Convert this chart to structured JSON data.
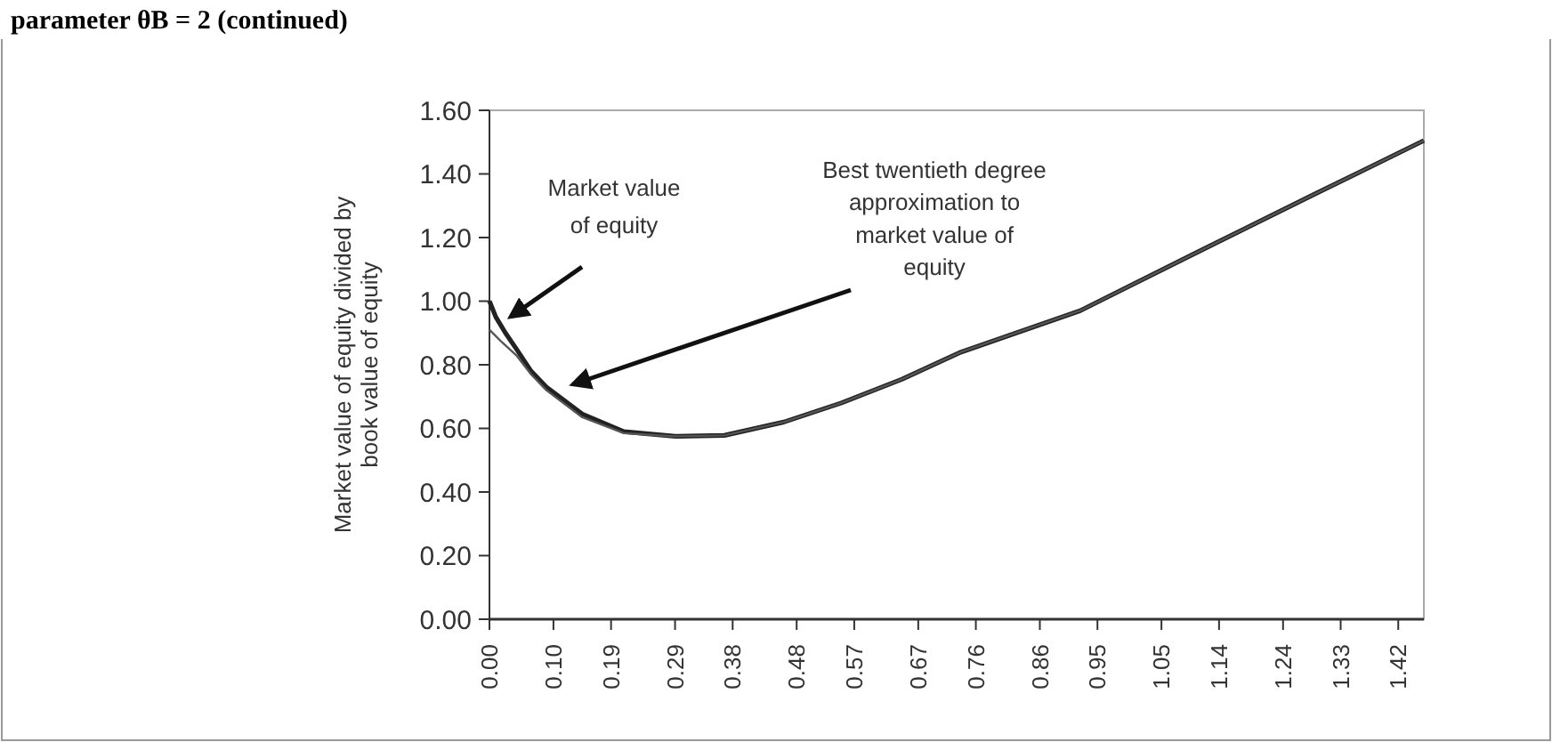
{
  "chart_data": {
    "type": "line",
    "title": "parameter θB = 2 (continued)",
    "ylabel": "Market value of equity divided by book value of equity",
    "annotations": [
      "Market value of equity",
      "Best twentieth degree approximation to market value of equity"
    ],
    "xlim": [
      0,
      1.46
    ],
    "ylim": [
      0,
      1.6
    ],
    "xticks": [
      {
        "value": 0,
        "label": "0.00"
      },
      {
        "value": 0.1,
        "label": "0.10"
      },
      0.19,
      0.29,
      0.38,
      0.48,
      0.57,
      0.67,
      0.76,
      0.86,
      0.95,
      1.05,
      1.14,
      1.24,
      1.33,
      1.42
    ],
    "yticks": [
      {
        "value": 0,
        "label": "0.00"
      },
      {
        "value": 0.2,
        "label": "0.20"
      },
      {
        "value": 0.4,
        "label": "0.40"
      },
      {
        "value": 0.6,
        "label": "0.60"
      },
      {
        "value": 0.8,
        "label": "0.80"
      },
      {
        "value": 1,
        "label": "1.00"
      },
      {
        "value": 1.2,
        "label": "1.20"
      },
      {
        "value": 1.4,
        "label": "1.40"
      },
      {
        "value": 1.6,
        "label": "1.60"
      }
    ],
    "grid": false,
    "marker": "none",
    "line_style": "solid",
    "series": [
      {
        "color": "#222222",
        "x": [
          0,
          0.01,
          0.025,
          0.042,
          0.065,
          0.089,
          0.145,
          0.21,
          0.29,
          0.367,
          0.46,
          0.55,
          0.645,
          0.737,
          0.923,
          1.107,
          1.293,
          1.46
        ],
        "values": [
          1.0,
          0.95,
          0.9,
          0.85,
          0.78,
          0.73,
          0.645,
          0.59,
          0.575,
          0.578,
          0.62,
          0.68,
          0.755,
          0.84,
          0.97,
          1.155,
          1.34,
          1.505
        ]
      },
      {
        "color": "#555555",
        "x": [
          0,
          0.02,
          0.042,
          0.065,
          0.089,
          0.145,
          0.21,
          0.29,
          0.367,
          0.46,
          0.55,
          0.645,
          0.737,
          0.923,
          1.107,
          1.293,
          1.46
        ],
        "values": [
          0.91,
          0.87,
          0.83,
          0.77,
          0.72,
          0.635,
          0.585,
          0.575,
          0.578,
          0.62,
          0.68,
          0.755,
          0.84,
          0.97,
          1.155,
          1.34,
          1.505
        ]
      }
    ]
  }
}
